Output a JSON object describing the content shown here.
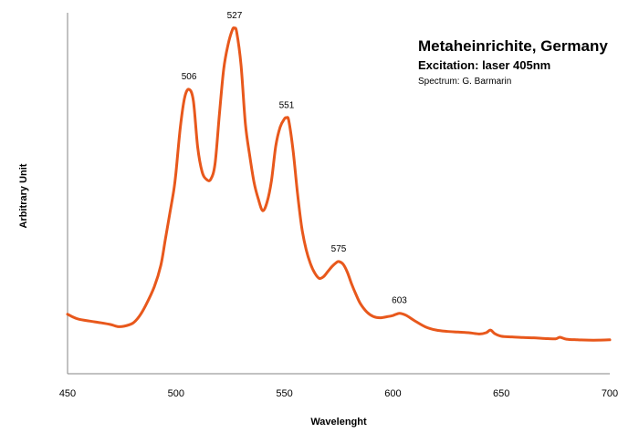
{
  "chart_data": {
    "type": "line",
    "title": "Metaheinrichite, Germany",
    "subtitle": "Excitation: laser 405nm",
    "credit": "Spectrum: G. Barmarin",
    "xlabel": "Wavelenght",
    "ylabel": "Arbitrary Unit",
    "xlim": [
      450,
      700
    ],
    "ylim": [
      0,
      100
    ],
    "x_ticks": [
      "450",
      "500",
      "550",
      "600",
      "650",
      "700"
    ],
    "grid": false,
    "line_color": "#E8581C",
    "series": [
      {
        "x": [
          450,
          452,
          455,
          460,
          465,
          470,
          473,
          476,
          480,
          483,
          486,
          490,
          493,
          495,
          497,
          499,
          500,
          502,
          504,
          506,
          508,
          510,
          512,
          514,
          516,
          518,
          520,
          522,
          524,
          526,
          527,
          528,
          530,
          532,
          534,
          536,
          538,
          540,
          542,
          544,
          546,
          548,
          550,
          551,
          552,
          554,
          556,
          558,
          560,
          562,
          564,
          566,
          568,
          570,
          572,
          574,
          575,
          577,
          579,
          581,
          583,
          585,
          588,
          591,
          594,
          597,
          600,
          603,
          606,
          610,
          615,
          620,
          625,
          630,
          635,
          640,
          643,
          645,
          647,
          650,
          655,
          660,
          665,
          670,
          675,
          677,
          680,
          685,
          690,
          695,
          700
        ],
        "y": [
          15,
          14.3,
          13.5,
          12.9,
          12.4,
          11.8,
          11.2,
          11.3,
          12.2,
          14.3,
          17.7,
          23.5,
          30.1,
          37.8,
          45.6,
          53.4,
          58.9,
          72.8,
          82.0,
          84.5,
          81.0,
          66.6,
          59.1,
          56.7,
          56.7,
          61.5,
          76.7,
          90.8,
          98.3,
          102.9,
          103.4,
          102.1,
          91.9,
          73.8,
          64.0,
          55.7,
          50.5,
          47.0,
          49.7,
          56.2,
          67.0,
          72.8,
          75.4,
          75.7,
          74.8,
          65.5,
          52.5,
          41.7,
          35.0,
          30.6,
          27.7,
          26.1,
          26.6,
          28.2,
          29.8,
          31.0,
          31.3,
          30.5,
          28.0,
          24.3,
          21.1,
          18.3,
          15.7,
          14.3,
          13.9,
          14.2,
          14.6,
          15.3,
          14.7,
          13.0,
          11.1,
          10.1,
          9.7,
          9.5,
          9.3,
          8.9,
          9.3,
          10.1,
          9.0,
          8.2,
          8.0,
          7.8,
          7.7,
          7.5,
          7.4,
          7.9,
          7.3,
          7.1,
          7.0,
          7.0,
          7.1
        ]
      }
    ],
    "annotations": [
      {
        "x": 506,
        "y": 84.5,
        "text": "506"
      },
      {
        "x": 527,
        "y": 103.4,
        "text": "527"
      },
      {
        "x": 551,
        "y": 75.7,
        "text": "551"
      },
      {
        "x": 575,
        "y": 31.3,
        "text": "575"
      },
      {
        "x": 603,
        "y": 15.3,
        "text": "603"
      }
    ]
  }
}
